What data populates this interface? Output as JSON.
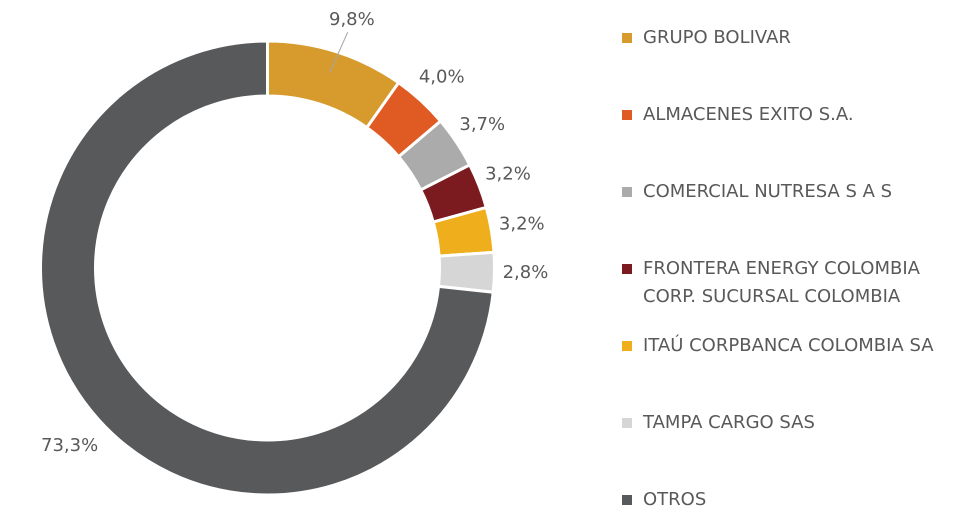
{
  "chart_data": {
    "type": "donut",
    "categories": [
      "GRUPO BOLIVAR",
      "ALMACENES EXITO S.A.",
      "COMERCIAL NUTRESA S A S",
      "FRONTERA ENERGY COLOMBIA CORP. SUCURSAL COLOMBIA",
      "ITAÚ CORPBANCA COLOMBIA SA",
      "TAMPA CARGO SAS",
      "OTROS"
    ],
    "values": [
      9.8,
      4.0,
      3.7,
      3.2,
      3.2,
      2.8,
      73.3
    ],
    "value_labels": [
      "9,8%",
      "4,0%",
      "3,7%",
      "3,2%",
      "3,2%",
      "2,8%",
      "73,3%"
    ],
    "colors": [
      "#D69A2D",
      "#E05A23",
      "#ABABAB",
      "#7B1B20",
      "#EFAE1C",
      "#D6D6D6",
      "#58595B"
    ],
    "legend": "right"
  }
}
